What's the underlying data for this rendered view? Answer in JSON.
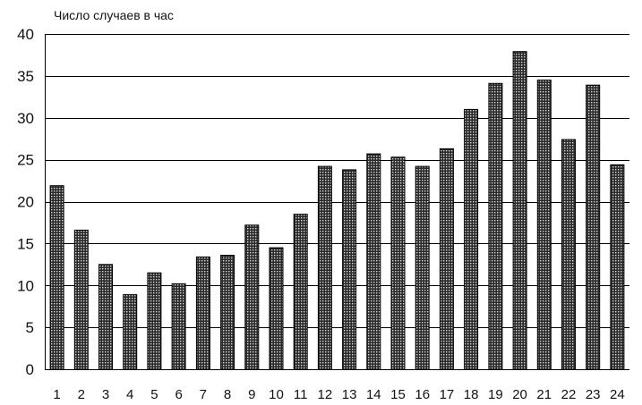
{
  "chart_data": {
    "type": "bar",
    "title": "",
    "xlabel": "",
    "ylabel": "Число случаев в час",
    "ylim": [
      0,
      40
    ],
    "yticks": [
      0,
      5,
      10,
      15,
      20,
      25,
      30,
      35,
      40
    ],
    "grid": true,
    "legend": "none",
    "categories": [
      "1",
      "2",
      "3",
      "4",
      "5",
      "6",
      "7",
      "8",
      "9",
      "10",
      "11",
      "12",
      "13",
      "14",
      "15",
      "16",
      "17",
      "18",
      "19",
      "20",
      "21",
      "22",
      "23",
      "24"
    ],
    "values": [
      21.9,
      16.6,
      12.5,
      8.9,
      11.5,
      10.2,
      13.4,
      13.6,
      17.2,
      14.5,
      18.5,
      24.2,
      23.8,
      25.7,
      25.3,
      24.2,
      26.3,
      31.0,
      34.1,
      37.9,
      34.5,
      27.4,
      33.9,
      24.4
    ],
    "colors": {
      "bar_dark": "#2a2a2a",
      "bar_light": "#d8d8d8",
      "grid": "#000000",
      "text": "#111111"
    }
  }
}
